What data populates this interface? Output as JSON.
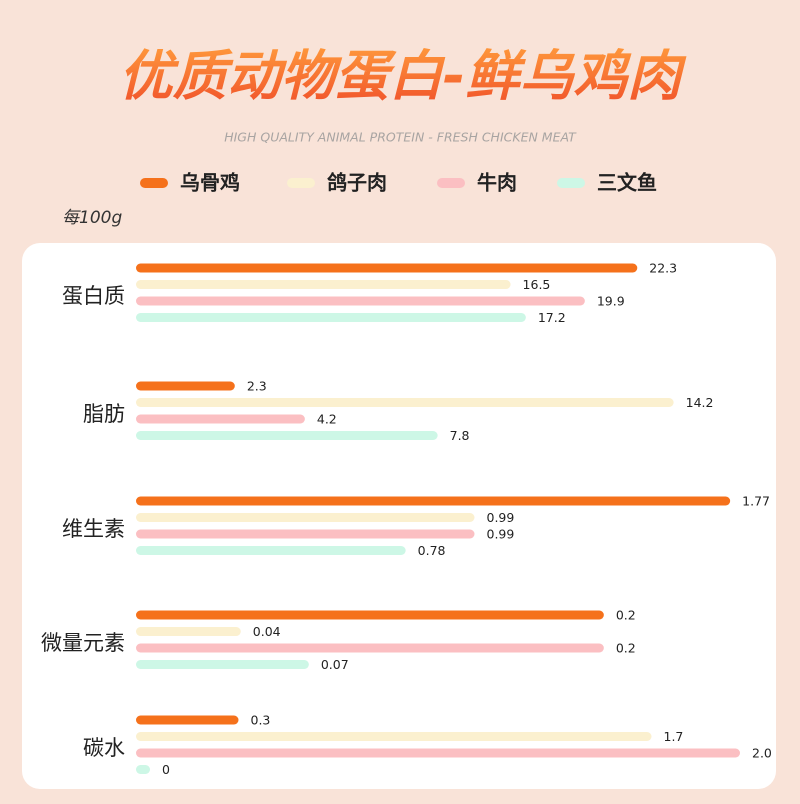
{
  "chart_data": {
    "type": "bar",
    "title": "优质动物蛋白-鲜乌鸡肉",
    "subtitle": "HIGH QUALITY ANIMAL PROTEIN - FRESH CHICKEN MEAT",
    "unit": "每100g",
    "series": [
      {
        "name": "乌骨鸡",
        "color": "#f5711b"
      },
      {
        "name": "鸽子肉",
        "color": "#fbf0cf"
      },
      {
        "name": "牛肉",
        "color": "#fbbfc2"
      },
      {
        "name": "三文鱼",
        "color": "#cdf7e6"
      }
    ],
    "groups": [
      {
        "name": "蛋白质",
        "values": [
          22.3,
          16.5,
          19.9,
          17.2
        ],
        "xlim": [
          0,
          27
        ]
      },
      {
        "name": "脂肪",
        "values": [
          2.3,
          14.2,
          4.2,
          7.8
        ],
        "xlim": [
          0,
          16
        ]
      },
      {
        "name": "维生素",
        "values": [
          1.77,
          0.99,
          0.99,
          0.78
        ],
        "xlim": [
          0,
          1.8
        ]
      },
      {
        "name": "微量元素",
        "values": [
          0.2,
          0.04,
          0.2,
          0.07
        ],
        "xlim": [
          0,
          0.26
        ]
      },
      {
        "name": "碳水",
        "values": [
          0.3,
          1.7,
          2,
          0
        ],
        "value_labels": [
          "0.3",
          "1.7",
          "2.0",
          "0"
        ],
        "xlim": [
          0,
          2
        ]
      }
    ]
  }
}
